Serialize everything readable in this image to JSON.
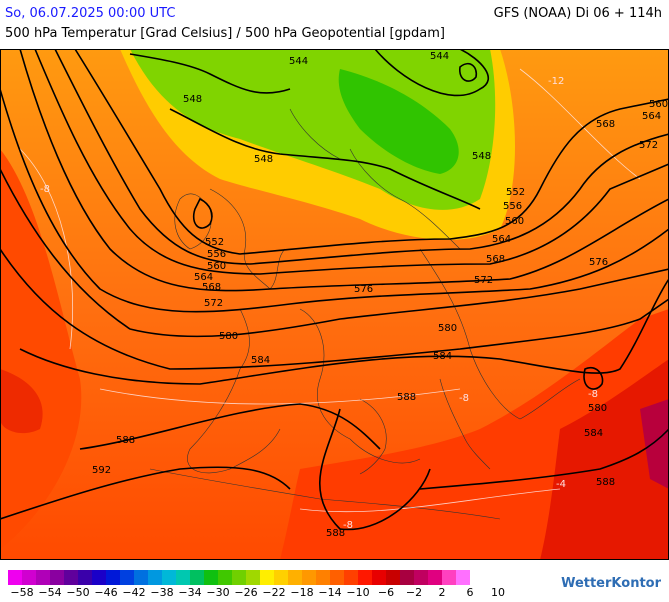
{
  "header": {
    "datetime": "So, 06.07.2025 00:00 UTC",
    "model": "GFS (NOAA) Di 06 + 114h",
    "product": "500 hPa Temperatur [Grad Celsius] / 500 hPa Geopotential [gpdam]"
  },
  "isolines": [
    {
      "label": "544"
    },
    {
      "label": "548"
    },
    {
      "label": "552"
    },
    {
      "label": "556"
    },
    {
      "label": "560"
    },
    {
      "label": "564"
    },
    {
      "label": "568"
    },
    {
      "label": "572"
    },
    {
      "label": "576"
    },
    {
      "label": "580"
    },
    {
      "label": "584"
    },
    {
      "label": "588"
    },
    {
      "label": "592"
    }
  ],
  "temp_labels": [
    "-8",
    "-12",
    "-8",
    "-8",
    "-8",
    "-4"
  ],
  "legend": {
    "colors": [
      "#ef00ef",
      "#d000d0",
      "#b000b8",
      "#8a00a0",
      "#60009c",
      "#3a00aa",
      "#1a00c8",
      "#0018d8",
      "#0040e0",
      "#0070e0",
      "#0098e0",
      "#00b8d8",
      "#00c8b0",
      "#00c060",
      "#10c010",
      "#40c800",
      "#70d000",
      "#a0d800",
      "#ffee00",
      "#ffd000",
      "#ffb000",
      "#ff9800",
      "#ff8000",
      "#ff6000",
      "#ff4000",
      "#ff1800",
      "#e80000",
      "#c80000",
      "#a80040",
      "#c00060",
      "#e00080",
      "#ff40c0",
      "#ff70ff"
    ],
    "labels": [
      "−58",
      "−54",
      "−50",
      "−46",
      "−42",
      "−38",
      "−34",
      "−30",
      "−26",
      "−22",
      "−18",
      "−14",
      "−10",
      "−6",
      "−2",
      "2",
      "6",
      "10"
    ]
  },
  "brand": "WetterKontor"
}
